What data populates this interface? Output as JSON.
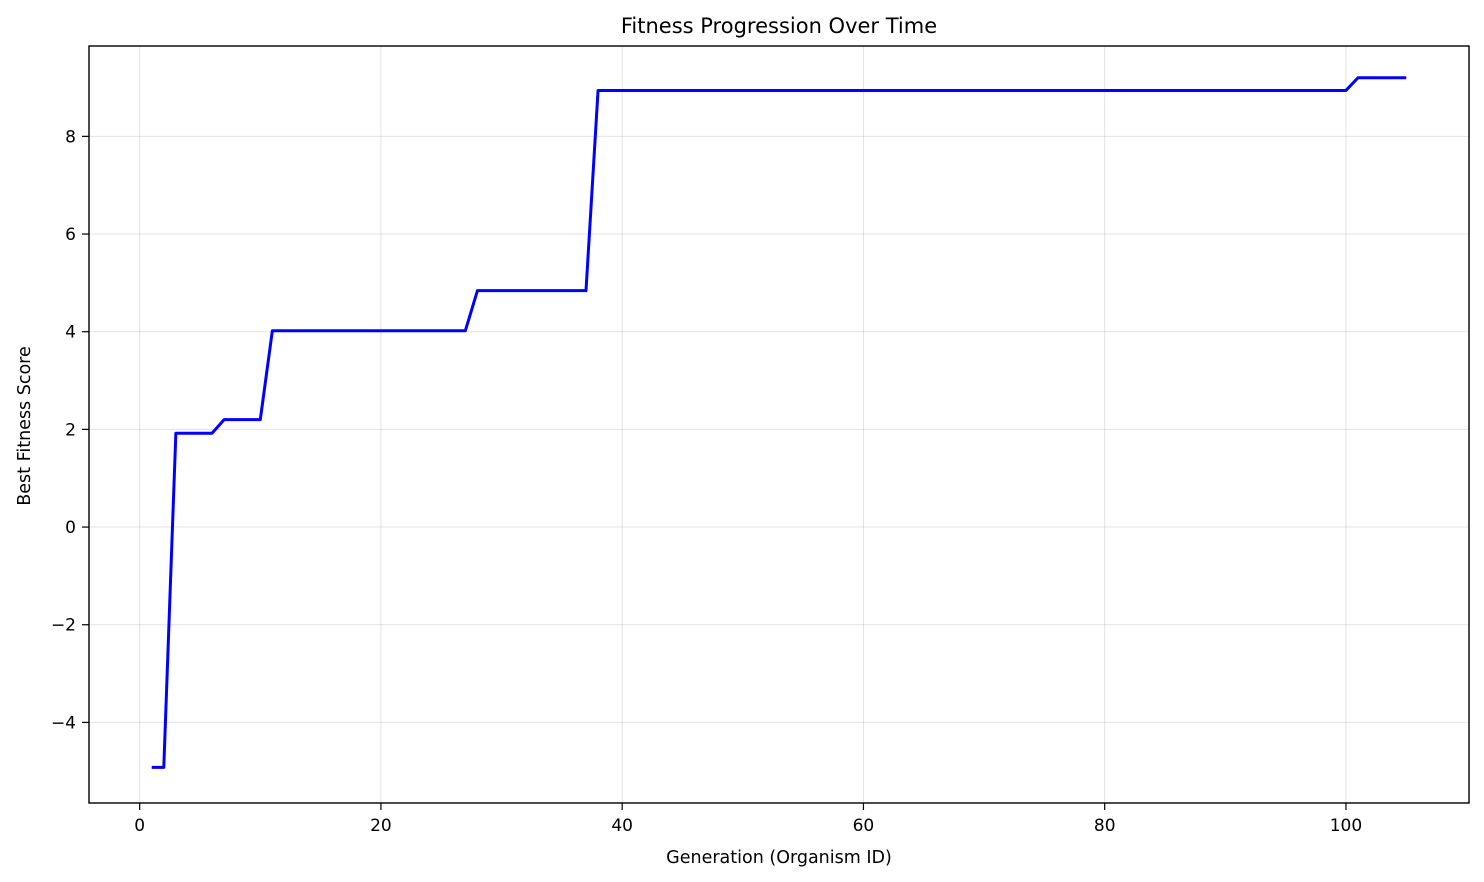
{
  "chart_data": {
    "type": "line",
    "title": "Fitness Progression Over Time",
    "xlabel": "Generation (Organism ID)",
    "ylabel": "Best Fitness Score",
    "xlim": [
      -4.2,
      110.2
    ],
    "ylim": [
      -5.65,
      9.85
    ],
    "xticks": [
      0,
      20,
      40,
      60,
      80,
      100
    ],
    "yticks": [
      -4,
      -2,
      0,
      2,
      4,
      6,
      8
    ],
    "xtick_labels": [
      "0",
      "20",
      "40",
      "60",
      "80",
      "100"
    ],
    "ytick_labels": [
      "−4",
      "−2",
      "0",
      "2",
      "4",
      "6",
      "8"
    ],
    "grid": true,
    "line_color": "#0000ff",
    "series": [
      {
        "x": [
          1,
          2,
          3,
          4,
          5,
          6,
          7,
          8,
          9,
          10,
          11,
          12,
          13,
          14,
          15,
          16,
          17,
          18,
          19,
          20,
          21,
          22,
          23,
          24,
          25,
          26,
          27,
          28,
          29,
          30,
          31,
          32,
          33,
          34,
          35,
          36,
          37,
          38,
          39,
          40,
          41,
          42,
          43,
          44,
          45,
          46,
          47,
          48,
          49,
          50,
          51,
          52,
          53,
          54,
          55,
          56,
          57,
          58,
          59,
          60,
          61,
          62,
          63,
          64,
          65,
          66,
          67,
          68,
          69,
          70,
          71,
          72,
          73,
          74,
          75,
          76,
          77,
          78,
          79,
          80,
          81,
          82,
          83,
          84,
          85,
          86,
          87,
          88,
          89,
          90,
          91,
          92,
          93,
          94,
          95,
          96,
          97,
          98,
          99,
          100,
          101,
          102,
          103,
          104,
          105
        ],
        "y": [
          -4.92,
          -4.92,
          1.92,
          1.92,
          1.92,
          1.92,
          2.2,
          2.2,
          2.2,
          2.2,
          4.02,
          4.02,
          4.02,
          4.02,
          4.02,
          4.02,
          4.02,
          4.02,
          4.02,
          4.02,
          4.02,
          4.02,
          4.02,
          4.02,
          4.02,
          4.02,
          4.02,
          4.84,
          4.84,
          4.84,
          4.84,
          4.84,
          4.84,
          4.84,
          4.84,
          4.84,
          4.84,
          8.94,
          8.94,
          8.94,
          8.94,
          8.94,
          8.94,
          8.94,
          8.94,
          8.94,
          8.94,
          8.94,
          8.94,
          8.94,
          8.94,
          8.94,
          8.94,
          8.94,
          8.94,
          8.94,
          8.94,
          8.94,
          8.94,
          8.94,
          8.94,
          8.94,
          8.94,
          8.94,
          8.94,
          8.94,
          8.94,
          8.94,
          8.94,
          8.94,
          8.94,
          8.94,
          8.94,
          8.94,
          8.94,
          8.94,
          8.94,
          8.94,
          8.94,
          8.94,
          8.94,
          8.94,
          8.94,
          8.94,
          8.94,
          8.94,
          8.94,
          8.94,
          8.94,
          8.94,
          8.94,
          8.94,
          8.94,
          8.94,
          8.94,
          8.94,
          8.94,
          8.94,
          8.94,
          8.94,
          9.2,
          9.2,
          9.2,
          9.2,
          9.2
        ]
      }
    ]
  }
}
